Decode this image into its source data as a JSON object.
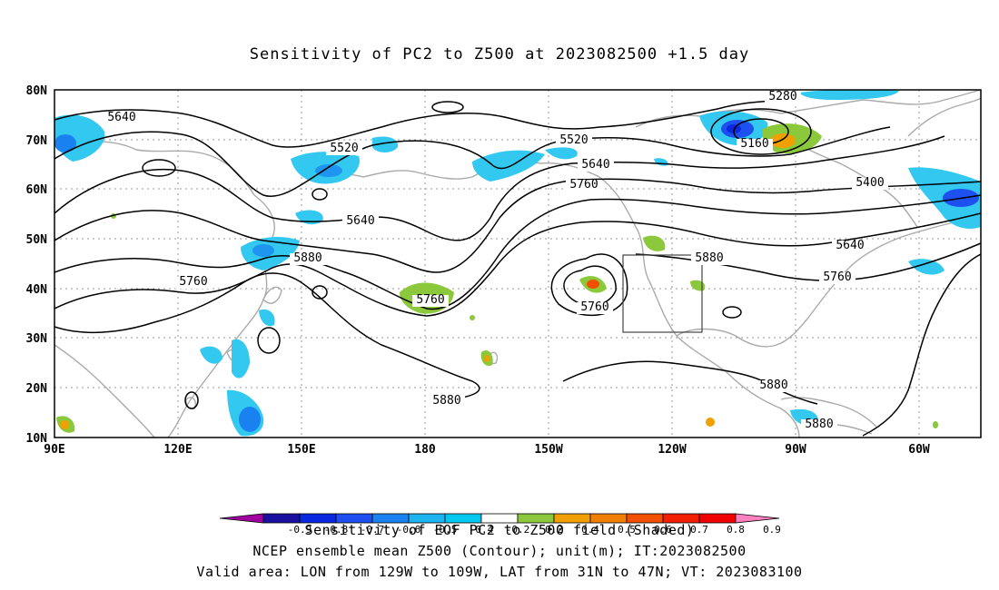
{
  "title": "Sensitivity of PC2 to Z500 at 2023082500 +1.5 day",
  "axes": {
    "lon_labels": [
      "90E",
      "120E",
      "150E",
      "180",
      "150W",
      "120W",
      "90W",
      "60W"
    ],
    "lat_labels": [
      "80N",
      "70N",
      "60N",
      "50N",
      "40N",
      "30N",
      "20N",
      "10N"
    ]
  },
  "contours": {
    "labels": [
      "5640",
      "5520",
      "5640",
      "5760",
      "5880",
      "5880",
      "5760",
      "5520",
      "5640",
      "5760",
      "5760",
      "5880",
      "5280",
      "5160",
      "5400",
      "5640",
      "5760",
      "5880",
      "5880"
    ]
  },
  "colorbar": {
    "tick_labels": [
      "-0.9",
      "-0.8",
      "-0.7",
      "-0.6",
      "-0.5",
      "-0.4",
      "-0.2",
      "0.2",
      "0.4",
      "0.5",
      "0.6",
      "0.7",
      "0.8",
      "0.9"
    ],
    "colors": [
      "#a000a0",
      "#1a10a0",
      "#0a28e0",
      "#1e50f0",
      "#1a82f0",
      "#1eb4f0",
      "#00c8f0",
      "#ffffff",
      "#8cc83c",
      "#f0a000",
      "#f08000",
      "#f05000",
      "#f02000",
      "#f00000",
      "#ff80c0"
    ]
  },
  "caption": {
    "line1": "Sensitivity of EOF PC2 to Z500 field (Shaded)",
    "line2": "NCEP ensemble mean Z500 (Contour); unit(m); IT:2023082500",
    "line3": "Valid area: LON from 129W to 109W, LAT from 31N to 47N; VT: 2023083100"
  }
}
